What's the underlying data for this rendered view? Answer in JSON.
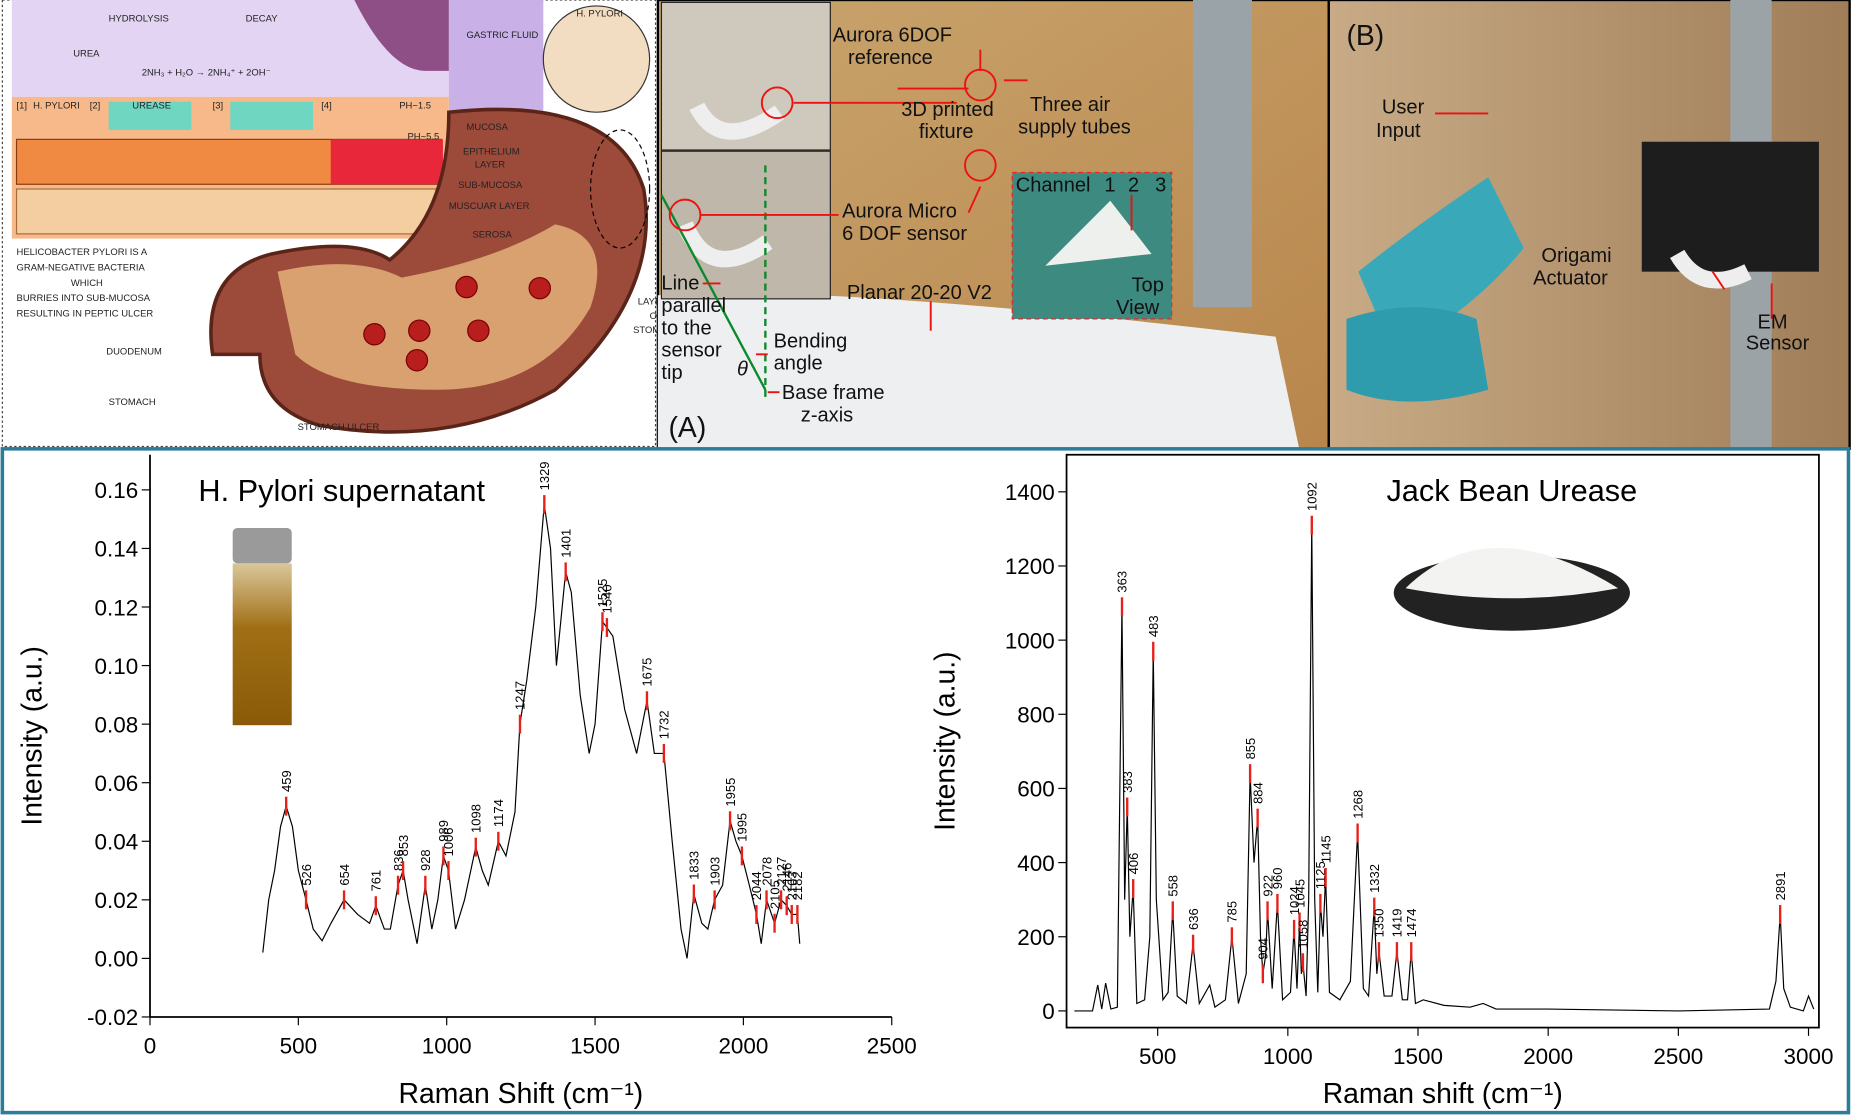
{
  "chart_data": [
    {
      "type": "line",
      "title": "H. Pylori supernatant",
      "x_label": "Raman Shift (cm⁻¹)",
      "y_label": "Intensity (a.u.)",
      "frame": false,
      "xlim": [
        0,
        2500
      ],
      "ylim": [
        -0.02,
        0.172
      ],
      "xticks": [
        0,
        500,
        1000,
        1500,
        2000,
        2500
      ],
      "yticks": [
        -0.02,
        {
          "value": 0,
          "label": "0.00"
        },
        0.02,
        0.04,
        0.06,
        0.08,
        {
          "value": 0.1,
          "label": "0.10"
        },
        0.12,
        0.14,
        0.16
      ],
      "x": [
        380,
        400,
        420,
        440,
        459,
        480,
        500,
        526,
        550,
        580,
        610,
        654,
        700,
        740,
        761,
        790,
        810,
        836,
        853,
        870,
        900,
        928,
        950,
        970,
        989,
        1006,
        1030,
        1060,
        1098,
        1120,
        1140,
        1174,
        1200,
        1230,
        1247,
        1270,
        1300,
        1329,
        1350,
        1370,
        1401,
        1420,
        1450,
        1480,
        1500,
        1525,
        1540,
        1560,
        1600,
        1640,
        1675,
        1700,
        1732,
        1760,
        1790,
        1810,
        1833,
        1860,
        1880,
        1903,
        1930,
        1955,
        1975,
        1995,
        2020,
        2044,
        2060,
        2078,
        2105,
        2127,
        2146,
        2163,
        2182,
        2190
      ],
      "series": [
        {
          "color": "#000000",
          "values": [
            0.002,
            0.02,
            0.03,
            0.045,
            0.052,
            0.045,
            0.03,
            0.02,
            0.01,
            0.006,
            0.012,
            0.02,
            0.015,
            0.012,
            0.018,
            0.01,
            0.01,
            0.025,
            0.03,
            0.02,
            0.005,
            0.025,
            0.01,
            0.02,
            0.035,
            0.03,
            0.01,
            0.02,
            0.038,
            0.03,
            0.025,
            0.04,
            0.035,
            0.05,
            0.08,
            0.095,
            0.12,
            0.155,
            0.14,
            0.1,
            0.132,
            0.125,
            0.09,
            0.07,
            0.08,
            0.115,
            0.113,
            0.11,
            0.085,
            0.07,
            0.088,
            0.07,
            0.07,
            0.04,
            0.01,
            0,
            0.022,
            0.012,
            0.01,
            0.02,
            0.025,
            0.047,
            0.04,
            0.035,
            0.025,
            0.015,
            0.005,
            0.02,
            0.012,
            0.02,
            0.018,
            0.015,
            0.015,
            0.005
          ]
        }
      ],
      "peaks": {
        "color": "#e8201a",
        "x": [
          459,
          526,
          654,
          761,
          836,
          853,
          928,
          989,
          1006,
          1098,
          1174,
          1247,
          1329,
          1401,
          1525,
          1540,
          1675,
          1732,
          1833,
          1903,
          1955,
          1995,
          2044,
          2078,
          2105,
          2127,
          2146,
          2163,
          2182
        ],
        "values": [
          0.052,
          0.02,
          0.02,
          0.018,
          0.025,
          0.03,
          0.025,
          0.035,
          0.03,
          0.038,
          0.04,
          0.08,
          0.155,
          0.132,
          0.115,
          0.113,
          0.088,
          0.07,
          0.022,
          0.02,
          0.047,
          0.035,
          0.015,
          0.02,
          0.012,
          0.02,
          0.018,
          0.015,
          0.015
        ]
      }
    },
    {
      "type": "line",
      "title": "Jack Bean Urease",
      "x_label": "Raman shift (cm⁻¹)",
      "y_label": "Intensity (a.u.)",
      "frame": true,
      "xlim": [
        150,
        3040
      ],
      "ylim": [
        -45,
        1500
      ],
      "xticks": [
        500,
        1000,
        1500,
        2000,
        2500,
        3000
      ],
      "yticks": [
        0,
        200,
        400,
        600,
        800,
        1000,
        1200,
        1400
      ],
      "x": [
        180,
        250,
        270,
        285,
        300,
        320,
        345,
        363,
        373,
        383,
        393,
        406,
        420,
        450,
        470,
        483,
        495,
        520,
        540,
        558,
        575,
        610,
        636,
        660,
        700,
        720,
        760,
        785,
        810,
        840,
        855,
        870,
        884,
        895,
        904,
        915,
        922,
        940,
        960,
        980,
        1010,
        1024,
        1035,
        1045,
        1052,
        1058,
        1070,
        1080,
        1092,
        1103,
        1115,
        1125,
        1135,
        1145,
        1160,
        1200,
        1240,
        1268,
        1290,
        1310,
        1332,
        1342,
        1350,
        1370,
        1400,
        1419,
        1440,
        1460,
        1474,
        1490,
        1520,
        1600,
        1700,
        1750,
        1800,
        2000,
        2500,
        2850,
        2875,
        2891,
        2905,
        2930,
        2980,
        3000,
        3020
      ],
      "series": [
        {
          "color": "#000000",
          "values": [
            0,
            0,
            70,
            5,
            75,
            5,
            10,
            1090,
            300,
            550,
            200,
            330,
            20,
            30,
            200,
            970,
            300,
            30,
            50,
            270,
            40,
            20,
            180,
            20,
            70,
            10,
            30,
            200,
            20,
            100,
            640,
            400,
            520,
            200,
            100,
            150,
            270,
            60,
            290,
            30,
            50,
            220,
            60,
            240,
            100,
            130,
            40,
            300,
            1310,
            300,
            50,
            290,
            200,
            360,
            50,
            30,
            80,
            480,
            60,
            40,
            280,
            100,
            160,
            40,
            40,
            160,
            30,
            30,
            160,
            20,
            30,
            15,
            10,
            20,
            5,
            5,
            0,
            5,
            80,
            260,
            60,
            10,
            0,
            40,
            5
          ]
        }
      ],
      "peaks": {
        "color": "#e8201a",
        "x": [
          363,
          383,
          406,
          483,
          558,
          636,
          785,
          855,
          884,
          904,
          922,
          960,
          1024,
          1045,
          1058,
          1092,
          1125,
          1145,
          1268,
          1332,
          1350,
          1419,
          1474,
          2891
        ],
        "values": [
          1090,
          550,
          330,
          970,
          270,
          180,
          200,
          640,
          520,
          100,
          270,
          290,
          220,
          240,
          130,
          1310,
          290,
          360,
          480,
          280,
          160,
          160,
          160,
          260
        ]
      }
    }
  ],
  "diagram": {
    "labels": [
      "UREA",
      "HYDROLYSIS",
      "DECAY",
      "2NH₃ + H₂O → 2NH₄⁺ + 2OH⁻",
      "[1]",
      "H. PYLORI",
      "[2]",
      "UREASE",
      "[3]",
      "[4]",
      "PH~1.5",
      "PH~5.5",
      "GASTRIC FLUID",
      "MUCOSA",
      "EPITHELIUM",
      "LAYER",
      "SUB-MUCOSA",
      "MUSCUAR LAYER",
      "SEROSA",
      "H. PYLORI",
      "LAYERS",
      "OF",
      "STOMACH",
      "HELICOBACTER PYLORI IS A",
      "GRAM-NEGATIVE BACTERIA",
      "WHICH",
      "BURRIES INTO SUB-MUCOSA",
      "RESULTING IN PEPTIC ULCER",
      "DUODENUM",
      "STOMACH",
      "STOMACH ULCER"
    ]
  },
  "photo_a": {
    "labels": [
      "Aurora 6DOF",
      "reference",
      "3D printed",
      "fixture",
      "Three air",
      "supply tubes",
      "Aurora Micro",
      "6 DOF sensor",
      "Channel",
      "1",
      "2",
      "3",
      "Top",
      "View",
      "Planar 20-20 V2",
      "Line",
      "parallel",
      "to the",
      "sensor",
      "tip",
      "Bending",
      "angle",
      "θ",
      "Base frame",
      "z-axis",
      "(A)"
    ]
  },
  "photo_b": {
    "labels": [
      "(B)",
      "User",
      "Input",
      "Origami",
      "Actuator",
      "EM",
      "Sensor"
    ]
  }
}
